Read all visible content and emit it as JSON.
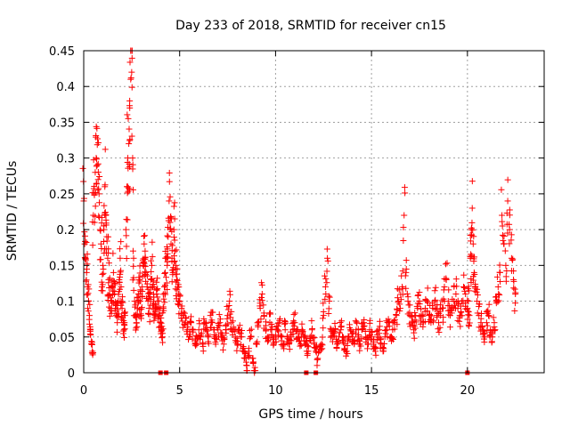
{
  "chart_data": {
    "type": "scatter",
    "title": "Day 233 of 2018, SRMTID for receiver cn15",
    "xlabel": "GPS time / hours",
    "ylabel": "SRMTID / TECUs",
    "xlim": [
      0,
      24
    ],
    "ylim": [
      0,
      0.45
    ],
    "xticks": [
      0,
      5,
      10,
      15,
      20
    ],
    "yticks": [
      0,
      0.05,
      0.1,
      0.15,
      0.2,
      0.25,
      0.3,
      0.35,
      0.4,
      0.45
    ],
    "xtick_labels": [
      "0",
      "5",
      "10",
      "15",
      "20"
    ],
    "ytick_labels": [
      "0",
      "0.05",
      "0.1",
      "0.15",
      "0.2",
      "0.25",
      "0.3",
      "0.35",
      "0.4",
      "0.45"
    ],
    "grid": true,
    "marker": "+",
    "series": [
      {
        "name": "SRMTID",
        "color": "#ff0000",
        "points": [
          [
            0.0,
            0.24
          ],
          [
            0.05,
            0.18
          ],
          [
            0.1,
            0.16
          ],
          [
            0.15,
            0.14
          ],
          [
            0.2,
            0.12
          ],
          [
            0.25,
            0.1
          ],
          [
            0.3,
            0.08
          ],
          [
            0.35,
            0.06
          ],
          [
            0.4,
            0.04
          ],
          [
            0.45,
            0.03
          ],
          [
            0.5,
            0.22
          ],
          [
            0.55,
            0.25
          ],
          [
            0.6,
            0.28
          ],
          [
            0.65,
            0.3
          ],
          [
            0.7,
            0.29
          ],
          [
            0.75,
            0.27
          ],
          [
            0.8,
            0.25
          ],
          [
            0.85,
            0.2
          ],
          [
            0.9,
            0.18
          ],
          [
            0.95,
            0.12
          ],
          [
            1.0,
            0.15
          ],
          [
            1.05,
            0.2
          ],
          [
            1.1,
            0.26
          ],
          [
            1.15,
            0.22
          ],
          [
            1.2,
            0.19
          ],
          [
            1.25,
            0.16
          ],
          [
            1.3,
            0.13
          ],
          [
            1.35,
            0.11
          ],
          [
            1.4,
            0.09
          ],
          [
            1.45,
            0.1
          ],
          [
            1.5,
            0.12
          ],
          [
            1.55,
            0.14
          ],
          [
            1.6,
            0.11
          ],
          [
            1.65,
            0.09
          ],
          [
            1.7,
            0.08
          ],
          [
            1.75,
            0.07
          ],
          [
            1.8,
            0.1
          ],
          [
            1.85,
            0.13
          ],
          [
            1.9,
            0.16
          ],
          [
            1.95,
            0.12
          ],
          [
            2.0,
            0.09
          ],
          [
            2.05,
            0.07
          ],
          [
            2.1,
            0.06
          ],
          [
            2.15,
            0.08
          ],
          [
            2.2,
            0.2
          ],
          [
            2.25,
            0.26
          ],
          [
            2.3,
            0.3
          ],
          [
            2.35,
            0.32
          ],
          [
            2.4,
            0.37
          ],
          [
            2.45,
            0.41
          ],
          [
            2.5,
            0.42
          ],
          [
            2.55,
            0.3
          ],
          [
            2.6,
            0.16
          ],
          [
            2.65,
            0.1
          ],
          [
            2.7,
            0.08
          ],
          [
            2.75,
            0.07
          ],
          [
            2.8,
            0.09
          ],
          [
            2.85,
            0.11
          ],
          [
            2.9,
            0.13
          ],
          [
            2.95,
            0.1
          ],
          [
            3.0,
            0.08
          ],
          [
            3.05,
            0.12
          ],
          [
            3.1,
            0.15
          ],
          [
            3.15,
            0.18
          ],
          [
            3.2,
            0.17
          ],
          [
            3.25,
            0.14
          ],
          [
            3.3,
            0.12
          ],
          [
            3.35,
            0.1
          ],
          [
            3.4,
            0.09
          ],
          [
            3.45,
            0.11
          ],
          [
            3.5,
            0.13
          ],
          [
            3.55,
            0.15
          ],
          [
            3.6,
            0.12
          ],
          [
            3.65,
            0.1
          ],
          [
            3.7,
            0.08
          ],
          [
            3.75,
            0.09
          ],
          [
            3.8,
            0.11
          ],
          [
            3.85,
            0.1
          ],
          [
            3.9,
            0.09
          ],
          [
            3.95,
            0.08
          ],
          [
            4.0,
            0.07
          ],
          [
            4.05,
            0.06
          ],
          [
            4.1,
            0.05
          ],
          [
            4.15,
            0.09
          ],
          [
            4.2,
            0.12
          ],
          [
            4.25,
            0.14
          ],
          [
            4.3,
            0.16
          ],
          [
            4.35,
            0.15
          ],
          [
            4.4,
            0.19
          ],
          [
            4.45,
            0.24
          ],
          [
            4.5,
            0.21
          ],
          [
            4.55,
            0.18
          ],
          [
            4.6,
            0.16
          ],
          [
            4.65,
            0.14
          ],
          [
            4.7,
            0.2
          ],
          [
            4.75,
            0.17
          ],
          [
            4.8,
            0.15
          ],
          [
            4.85,
            0.13
          ],
          [
            4.9,
            0.12
          ],
          [
            4.95,
            0.11
          ],
          [
            5.0,
            0.1
          ],
          [
            5.1,
            0.09
          ],
          [
            5.2,
            0.08
          ],
          [
            5.3,
            0.07
          ],
          [
            5.4,
            0.06
          ],
          [
            5.5,
            0.05
          ],
          [
            5.6,
            0.07
          ],
          [
            5.7,
            0.06
          ],
          [
            5.8,
            0.04
          ],
          [
            5.9,
            0.05
          ],
          [
            6.0,
            0.06
          ],
          [
            6.1,
            0.05
          ],
          [
            6.2,
            0.04
          ],
          [
            6.3,
            0.07
          ],
          [
            6.4,
            0.06
          ],
          [
            6.5,
            0.05
          ],
          [
            6.6,
            0.08
          ],
          [
            6.7,
            0.07
          ],
          [
            6.8,
            0.06
          ],
          [
            6.9,
            0.05
          ],
          [
            7.0,
            0.06
          ],
          [
            7.1,
            0.07
          ],
          [
            7.2,
            0.05
          ],
          [
            7.3,
            0.04
          ],
          [
            7.4,
            0.06
          ],
          [
            7.5,
            0.08
          ],
          [
            7.6,
            0.1
          ],
          [
            7.7,
            0.07
          ],
          [
            7.8,
            0.06
          ],
          [
            7.9,
            0.05
          ],
          [
            8.0,
            0.04
          ],
          [
            8.1,
            0.06
          ],
          [
            8.2,
            0.05
          ],
          [
            8.3,
            0.03
          ],
          [
            8.4,
            0.02
          ],
          [
            8.5,
            0.01
          ],
          [
            8.6,
            0.03
          ],
          [
            8.7,
            0.05
          ],
          [
            8.8,
            0.02
          ],
          [
            8.9,
            0.0
          ],
          [
            9.0,
            0.04
          ],
          [
            9.1,
            0.07
          ],
          [
            9.2,
            0.09
          ],
          [
            9.3,
            0.11
          ],
          [
            9.4,
            0.08
          ],
          [
            9.5,
            0.06
          ],
          [
            9.6,
            0.05
          ],
          [
            9.7,
            0.07
          ],
          [
            9.8,
            0.06
          ],
          [
            9.9,
            0.04
          ],
          [
            10.0,
            0.05
          ],
          [
            10.1,
            0.06
          ],
          [
            10.2,
            0.07
          ],
          [
            10.3,
            0.05
          ],
          [
            10.4,
            0.04
          ],
          [
            10.5,
            0.06
          ],
          [
            10.6,
            0.05
          ],
          [
            10.7,
            0.04
          ],
          [
            10.8,
            0.05
          ],
          [
            10.9,
            0.06
          ],
          [
            11.0,
            0.07
          ],
          [
            11.1,
            0.06
          ],
          [
            11.2,
            0.05
          ],
          [
            11.3,
            0.04
          ],
          [
            11.4,
            0.06
          ],
          [
            11.5,
            0.05
          ],
          [
            11.6,
            0.04
          ],
          [
            11.7,
            0.03
          ],
          [
            11.8,
            0.05
          ],
          [
            11.9,
            0.06
          ],
          [
            12.0,
            0.04
          ],
          [
            12.1,
            0.03
          ],
          [
            12.2,
            0.02
          ],
          [
            12.3,
            0.03
          ],
          [
            12.4,
            0.04
          ],
          [
            12.5,
            0.08
          ],
          [
            12.6,
            0.12
          ],
          [
            12.7,
            0.16
          ],
          [
            12.8,
            0.1
          ],
          [
            12.9,
            0.06
          ],
          [
            13.0,
            0.05
          ],
          [
            13.1,
            0.06
          ],
          [
            13.2,
            0.04
          ],
          [
            13.3,
            0.05
          ],
          [
            13.4,
            0.06
          ],
          [
            13.5,
            0.05
          ],
          [
            13.6,
            0.04
          ],
          [
            13.7,
            0.03
          ],
          [
            13.8,
            0.05
          ],
          [
            13.9,
            0.06
          ],
          [
            14.0,
            0.05
          ],
          [
            14.1,
            0.04
          ],
          [
            14.2,
            0.06
          ],
          [
            14.3,
            0.05
          ],
          [
            14.4,
            0.04
          ],
          [
            14.5,
            0.06
          ],
          [
            14.6,
            0.07
          ],
          [
            14.7,
            0.05
          ],
          [
            14.8,
            0.04
          ],
          [
            14.9,
            0.06
          ],
          [
            15.0,
            0.05
          ],
          [
            15.1,
            0.04
          ],
          [
            15.2,
            0.03
          ],
          [
            15.3,
            0.05
          ],
          [
            15.4,
            0.06
          ],
          [
            15.5,
            0.04
          ],
          [
            15.6,
            0.03
          ],
          [
            15.7,
            0.05
          ],
          [
            15.8,
            0.06
          ],
          [
            15.9,
            0.07
          ],
          [
            16.0,
            0.05
          ],
          [
            16.1,
            0.06
          ],
          [
            16.2,
            0.07
          ],
          [
            16.3,
            0.08
          ],
          [
            16.4,
            0.1
          ],
          [
            16.5,
            0.09
          ],
          [
            16.6,
            0.12
          ],
          [
            16.7,
            0.22
          ],
          [
            16.8,
            0.14
          ],
          [
            16.9,
            0.1
          ],
          [
            17.0,
            0.08
          ],
          [
            17.1,
            0.07
          ],
          [
            17.2,
            0.06
          ],
          [
            17.3,
            0.08
          ],
          [
            17.4,
            0.09
          ],
          [
            17.5,
            0.1
          ],
          [
            17.6,
            0.08
          ],
          [
            17.7,
            0.07
          ],
          [
            17.8,
            0.09
          ],
          [
            17.9,
            0.1
          ],
          [
            18.0,
            0.08
          ],
          [
            18.1,
            0.07
          ],
          [
            18.2,
            0.09
          ],
          [
            18.3,
            0.1
          ],
          [
            18.4,
            0.08
          ],
          [
            18.5,
            0.07
          ],
          [
            18.6,
            0.08
          ],
          [
            18.7,
            0.09
          ],
          [
            18.8,
            0.12
          ],
          [
            18.9,
            0.13
          ],
          [
            19.0,
            0.1
          ],
          [
            19.1,
            0.08
          ],
          [
            19.2,
            0.09
          ],
          [
            19.3,
            0.1
          ],
          [
            19.4,
            0.11
          ],
          [
            19.5,
            0.09
          ],
          [
            19.6,
            0.08
          ],
          [
            19.7,
            0.1
          ],
          [
            19.8,
            0.12
          ],
          [
            19.9,
            0.11
          ],
          [
            20.0,
            0.09
          ],
          [
            20.05,
            0.1
          ],
          [
            20.1,
            0.08
          ],
          [
            20.15,
            0.16
          ],
          [
            20.2,
            0.2
          ],
          [
            20.25,
            0.23
          ],
          [
            20.3,
            0.18
          ],
          [
            20.35,
            0.14
          ],
          [
            20.4,
            0.12
          ],
          [
            20.5,
            0.1
          ],
          [
            20.6,
            0.08
          ],
          [
            20.7,
            0.07
          ],
          [
            20.8,
            0.06
          ],
          [
            20.9,
            0.05
          ],
          [
            21.0,
            0.07
          ],
          [
            21.1,
            0.08
          ],
          [
            21.2,
            0.06
          ],
          [
            21.3,
            0.05
          ],
          [
            21.4,
            0.07
          ],
          [
            21.5,
            0.1
          ],
          [
            21.6,
            0.12
          ],
          [
            21.7,
            0.14
          ],
          [
            21.8,
            0.22
          ],
          [
            21.9,
            0.18
          ],
          [
            22.0,
            0.15
          ],
          [
            22.1,
            0.24
          ],
          [
            22.2,
            0.2
          ],
          [
            22.3,
            0.16
          ],
          [
            22.4,
            0.13
          ],
          [
            22.5,
            0.11
          ]
        ]
      }
    ],
    "zero_markers": [
      4.0,
      4.3,
      11.6,
      12.1,
      20.0
    ]
  }
}
